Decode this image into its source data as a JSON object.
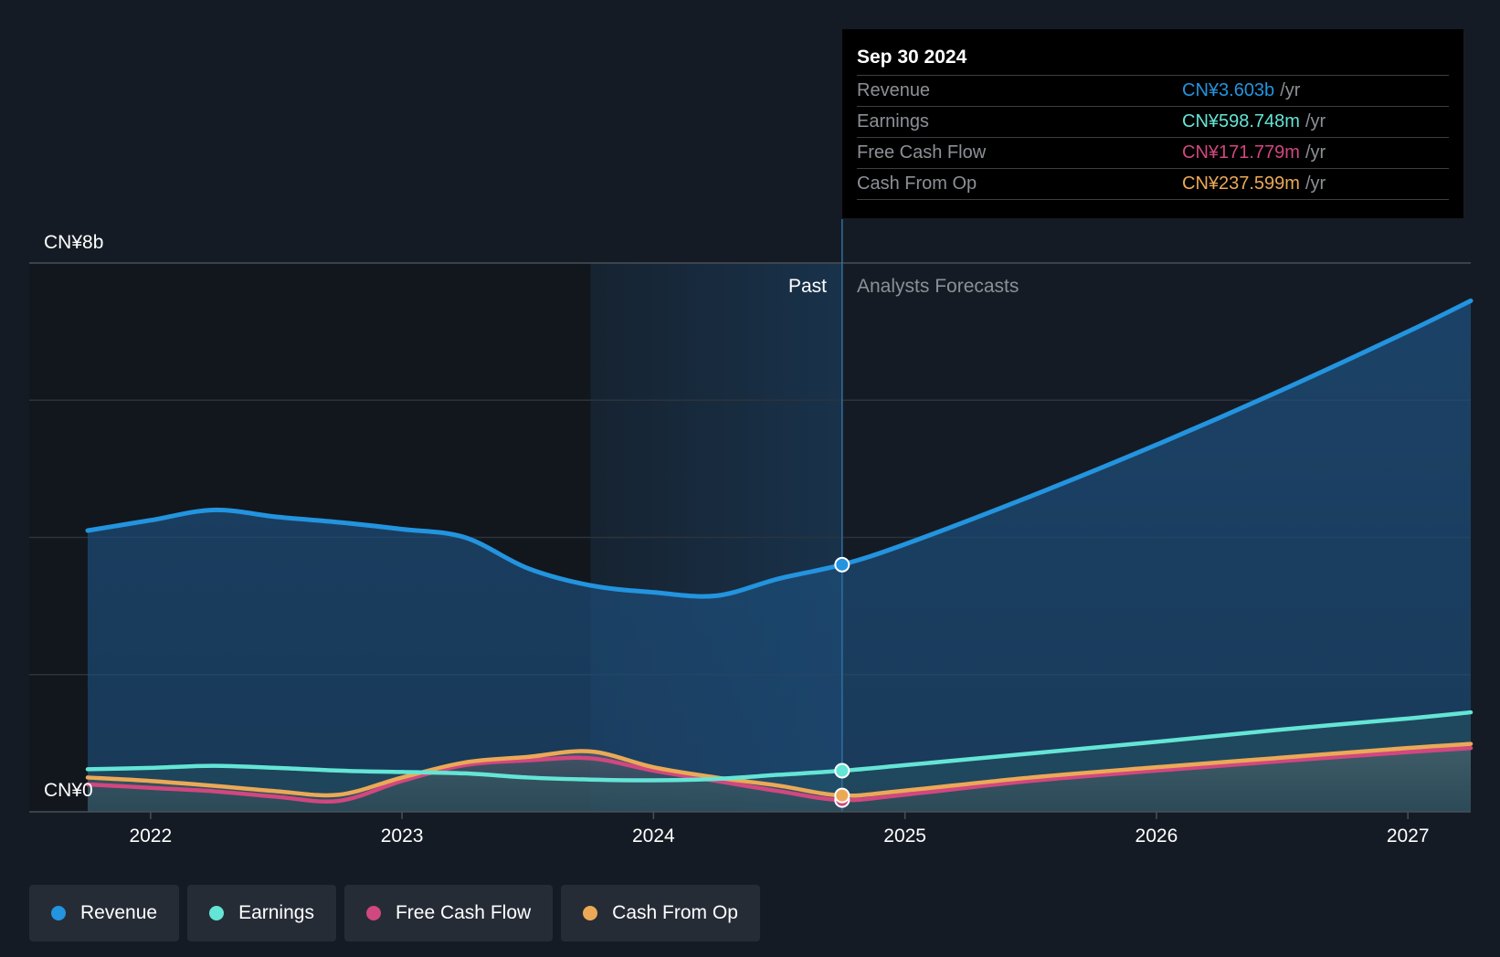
{
  "chart_data": {
    "type": "area",
    "y_axis": {
      "top_label": "CN¥8b",
      "bottom_label": "CN¥0",
      "ylim": [
        0,
        8
      ]
    },
    "x_axis": {
      "ticks": [
        "2022",
        "2023",
        "2024",
        "2025",
        "2026",
        "2027"
      ],
      "xlim": [
        2021.75,
        2027.25
      ]
    },
    "regions": {
      "past_label": "Past",
      "forecast_label": "Analysts Forecasts",
      "past_start": 2023.75,
      "divider": 2024.75
    },
    "series": [
      {
        "name": "Revenue",
        "color": "#2394df",
        "points": [
          [
            2021.75,
            4.1
          ],
          [
            2022.0,
            4.25
          ],
          [
            2022.25,
            4.4
          ],
          [
            2022.5,
            4.3
          ],
          [
            2022.75,
            4.22
          ],
          [
            2023.0,
            4.12
          ],
          [
            2023.25,
            4.0
          ],
          [
            2023.5,
            3.55
          ],
          [
            2023.75,
            3.3
          ],
          [
            2024.0,
            3.2
          ],
          [
            2024.25,
            3.15
          ],
          [
            2024.5,
            3.4
          ],
          [
            2024.75,
            3.603
          ],
          [
            2025.0,
            3.9
          ],
          [
            2025.5,
            4.6
          ],
          [
            2026.0,
            5.35
          ],
          [
            2026.5,
            6.15
          ],
          [
            2027.0,
            7.0
          ],
          [
            2027.25,
            7.45
          ]
        ]
      },
      {
        "name": "Earnings",
        "color": "#64e5d6",
        "points": [
          [
            2021.75,
            0.62
          ],
          [
            2022.0,
            0.64
          ],
          [
            2022.25,
            0.67
          ],
          [
            2022.5,
            0.64
          ],
          [
            2022.75,
            0.6
          ],
          [
            2023.0,
            0.58
          ],
          [
            2023.25,
            0.56
          ],
          [
            2023.5,
            0.5
          ],
          [
            2023.75,
            0.47
          ],
          [
            2024.0,
            0.46
          ],
          [
            2024.25,
            0.48
          ],
          [
            2024.5,
            0.54
          ],
          [
            2024.75,
            0.598748
          ],
          [
            2025.0,
            0.68
          ],
          [
            2025.5,
            0.85
          ],
          [
            2026.0,
            1.02
          ],
          [
            2026.5,
            1.2
          ],
          [
            2027.0,
            1.36
          ],
          [
            2027.25,
            1.45
          ]
        ]
      },
      {
        "name": "Free Cash Flow",
        "color": "#d1477f",
        "points": [
          [
            2021.75,
            0.4
          ],
          [
            2022.0,
            0.35
          ],
          [
            2022.25,
            0.3
          ],
          [
            2022.5,
            0.22
          ],
          [
            2022.75,
            0.16
          ],
          [
            2023.0,
            0.45
          ],
          [
            2023.25,
            0.68
          ],
          [
            2023.5,
            0.75
          ],
          [
            2023.75,
            0.78
          ],
          [
            2024.0,
            0.6
          ],
          [
            2024.25,
            0.45
          ],
          [
            2024.5,
            0.3
          ],
          [
            2024.75,
            0.171779
          ],
          [
            2025.0,
            0.25
          ],
          [
            2025.5,
            0.45
          ],
          [
            2026.0,
            0.6
          ],
          [
            2026.5,
            0.74
          ],
          [
            2027.0,
            0.87
          ],
          [
            2027.25,
            0.93
          ]
        ]
      },
      {
        "name": "Cash From Op",
        "color": "#eba957",
        "points": [
          [
            2021.75,
            0.5
          ],
          [
            2022.0,
            0.45
          ],
          [
            2022.25,
            0.38
          ],
          [
            2022.5,
            0.3
          ],
          [
            2022.75,
            0.25
          ],
          [
            2023.0,
            0.5
          ],
          [
            2023.25,
            0.72
          ],
          [
            2023.5,
            0.8
          ],
          [
            2023.75,
            0.88
          ],
          [
            2024.0,
            0.65
          ],
          [
            2024.25,
            0.5
          ],
          [
            2024.5,
            0.38
          ],
          [
            2024.75,
            0.237599
          ],
          [
            2025.0,
            0.31
          ],
          [
            2025.5,
            0.5
          ],
          [
            2026.0,
            0.65
          ],
          [
            2026.5,
            0.79
          ],
          [
            2027.0,
            0.93
          ],
          [
            2027.25,
            0.99
          ]
        ]
      }
    ]
  },
  "tooltip": {
    "date": "Sep 30 2024",
    "rows": [
      {
        "label": "Revenue",
        "value": "CN¥3.603b",
        "unit": "/yr",
        "color": "#2394df"
      },
      {
        "label": "Earnings",
        "value": "CN¥598.748m",
        "unit": "/yr",
        "color": "#64e5d6"
      },
      {
        "label": "Free Cash Flow",
        "value": "CN¥171.779m",
        "unit": "/yr",
        "color": "#d1477f"
      },
      {
        "label": "Cash From Op",
        "value": "CN¥237.599m",
        "unit": "/yr",
        "color": "#eba957"
      }
    ]
  },
  "legend": [
    {
      "label": "Revenue",
      "color": "#2394df"
    },
    {
      "label": "Earnings",
      "color": "#64e5d6"
    },
    {
      "label": "Free Cash Flow",
      "color": "#d1477f"
    },
    {
      "label": "Cash From Op",
      "color": "#eba957"
    }
  ]
}
